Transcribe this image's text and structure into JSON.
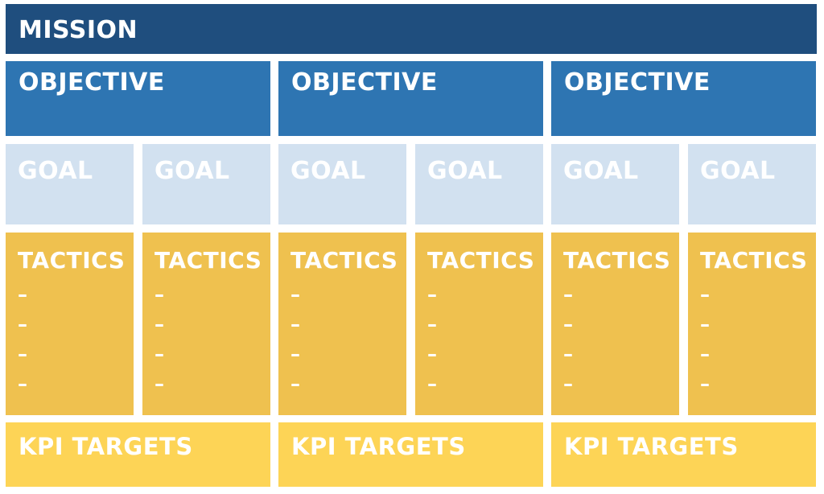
{
  "mission": "MISSION",
  "objectives": [
    "OBJECTIVE",
    "OBJECTIVE",
    "OBJECTIVE"
  ],
  "goals": [
    "GOAL",
    "GOAL",
    "GOAL",
    "GOAL",
    "GOAL",
    "GOAL"
  ],
  "tactics": [
    {
      "label": "TACTICS",
      "items": [
        "–",
        "–",
        "–",
        "–"
      ]
    },
    {
      "label": "TACTICS",
      "items": [
        "–",
        "–",
        "–",
        "–"
      ]
    },
    {
      "label": "TACTICS",
      "items": [
        "–",
        "–",
        "–",
        "–"
      ]
    },
    {
      "label": "TACTICS",
      "items": [
        "–",
        "–",
        "–",
        "–"
      ]
    },
    {
      "label": "TACTICS",
      "items": [
        "–",
        "–",
        "–",
        "–"
      ]
    },
    {
      "label": "TACTICS",
      "items": [
        "–",
        "–",
        "–",
        "–"
      ]
    }
  ],
  "kpi_targets": [
    "KPI TARGETS",
    "KPI TARGETS",
    "KPI TARGETS"
  ],
  "colors": {
    "mission": "#1f4e7e",
    "objective": "#2e75b2",
    "goal": "#d2e1f0",
    "tactics": "#efc14f",
    "kpi": "#fdd456",
    "text": "#ffffff"
  }
}
